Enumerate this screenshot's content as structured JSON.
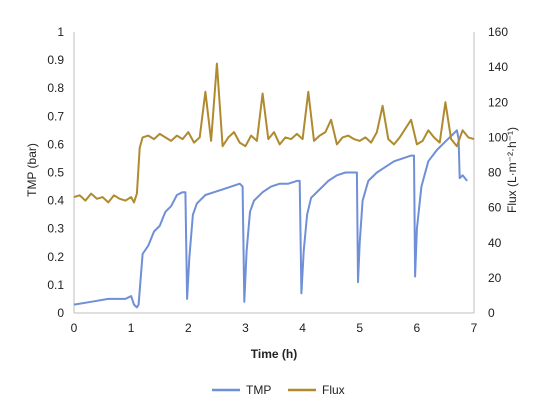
{
  "chart_data": {
    "type": "line",
    "title": "",
    "xlabel": "Time (h)",
    "ylabel_left": "TMP (bar)",
    "ylabel_right": "Flux (L·m⁻²·h⁻¹)",
    "xlim": [
      0,
      7
    ],
    "ylim_left": [
      0,
      1
    ],
    "ylim_right": [
      0,
      160
    ],
    "x_ticks": [
      "0",
      "1",
      "2",
      "3",
      "4",
      "5",
      "6",
      "7"
    ],
    "y_left_ticks": [
      "0",
      "0.1",
      "0.2",
      "0.3",
      "0.4",
      "0.5",
      "0.6",
      "0.7",
      "0.8",
      "0.9",
      "1"
    ],
    "y_right_ticks": [
      "0",
      "20",
      "40",
      "60",
      "80",
      "100",
      "120",
      "140",
      "160"
    ],
    "grid": false,
    "legend_position": "bottom",
    "series": [
      {
        "name": "TMP",
        "axis": "left",
        "color": "#6f8fd6",
        "x": [
          0.0,
          0.3,
          0.6,
          0.9,
          1.0,
          1.05,
          1.1,
          1.13,
          1.2,
          1.3,
          1.4,
          1.5,
          1.6,
          1.7,
          1.8,
          1.9,
          1.95,
          1.98,
          2.02,
          2.08,
          2.15,
          2.3,
          2.45,
          2.6,
          2.75,
          2.9,
          2.95,
          2.98,
          3.02,
          3.08,
          3.15,
          3.3,
          3.45,
          3.6,
          3.75,
          3.9,
          3.95,
          3.98,
          4.02,
          4.08,
          4.15,
          4.3,
          4.45,
          4.6,
          4.75,
          4.9,
          4.95,
          4.97,
          5.0,
          5.05,
          5.15,
          5.3,
          5.45,
          5.6,
          5.75,
          5.9,
          5.95,
          5.97,
          6.0,
          6.08,
          6.2,
          6.35,
          6.5,
          6.6,
          6.65,
          6.7,
          6.73,
          6.75,
          6.8,
          6.88
        ],
        "y": [
          0.03,
          0.04,
          0.05,
          0.05,
          0.06,
          0.03,
          0.02,
          0.03,
          0.21,
          0.24,
          0.29,
          0.31,
          0.36,
          0.38,
          0.42,
          0.43,
          0.43,
          0.05,
          0.2,
          0.35,
          0.39,
          0.42,
          0.43,
          0.44,
          0.45,
          0.46,
          0.45,
          0.04,
          0.22,
          0.36,
          0.4,
          0.43,
          0.45,
          0.46,
          0.46,
          0.47,
          0.47,
          0.07,
          0.22,
          0.35,
          0.41,
          0.44,
          0.47,
          0.49,
          0.5,
          0.5,
          0.5,
          0.11,
          0.25,
          0.4,
          0.47,
          0.5,
          0.52,
          0.54,
          0.55,
          0.56,
          0.56,
          0.13,
          0.3,
          0.45,
          0.54,
          0.58,
          0.61,
          0.63,
          0.64,
          0.65,
          0.62,
          0.48,
          0.49,
          0.47
        ],
        "values_in_data_units": true
      },
      {
        "name": "Flux",
        "axis": "right",
        "color": "#b08a2f",
        "x": [
          0.0,
          0.1,
          0.2,
          0.3,
          0.4,
          0.5,
          0.6,
          0.7,
          0.8,
          0.9,
          1.0,
          1.05,
          1.1,
          1.15,
          1.2,
          1.3,
          1.4,
          1.5,
          1.6,
          1.7,
          1.8,
          1.9,
          2.0,
          2.1,
          2.2,
          2.3,
          2.4,
          2.5,
          2.6,
          2.7,
          2.8,
          2.9,
          3.0,
          3.1,
          3.2,
          3.3,
          3.4,
          3.5,
          3.6,
          3.7,
          3.8,
          3.9,
          4.0,
          4.1,
          4.2,
          4.3,
          4.4,
          4.5,
          4.6,
          4.7,
          4.8,
          4.9,
          5.0,
          5.1,
          5.2,
          5.3,
          5.4,
          5.5,
          5.6,
          5.7,
          5.8,
          5.9,
          6.0,
          6.1,
          6.2,
          6.3,
          6.4,
          6.5,
          6.6,
          6.7,
          6.8,
          6.9,
          7.0
        ],
        "y": [
          66,
          67,
          64,
          68,
          65,
          66,
          63,
          67,
          65,
          64,
          66,
          63,
          68,
          94,
          100,
          101,
          99,
          102,
          100,
          98,
          101,
          99,
          103,
          97,
          100,
          126,
          98,
          142,
          95,
          100,
          103,
          97,
          95,
          101,
          98,
          125,
          99,
          103,
          96,
          100,
          99,
          102,
          99,
          126,
          98,
          101,
          103,
          110,
          96,
          100,
          101,
          99,
          98,
          100,
          97,
          103,
          118,
          99,
          96,
          100,
          105,
          110,
          96,
          98,
          104,
          100,
          97,
          120,
          99,
          95,
          104,
          100,
          99
        ],
        "values_in_data_units": true
      }
    ]
  }
}
